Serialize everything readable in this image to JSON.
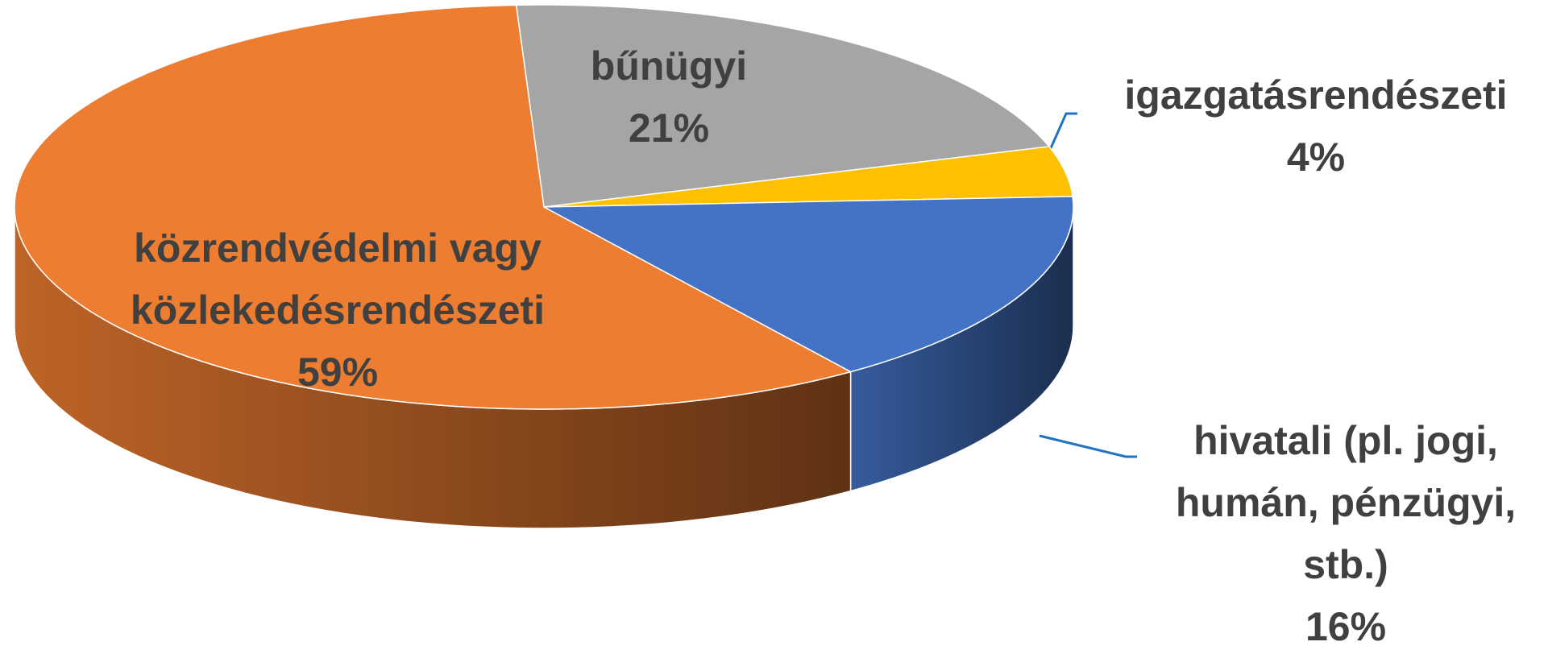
{
  "chart_data": {
    "type": "pie3d",
    "categories": [
      "bűnügyi",
      "igazgatásrendészeti",
      "hivatali (pl. jogi, humán, pénzügyi, stb.)",
      "közrendvédelmi vagy közlekedésrendészeti"
    ],
    "values": [
      21,
      4,
      16,
      59
    ],
    "value_labels": [
      "21%",
      "4%",
      "16%",
      "59%"
    ],
    "colors": [
      "#a5a5a5",
      "#ffc000",
      "#4472c4",
      "#ed7d31"
    ]
  }
}
